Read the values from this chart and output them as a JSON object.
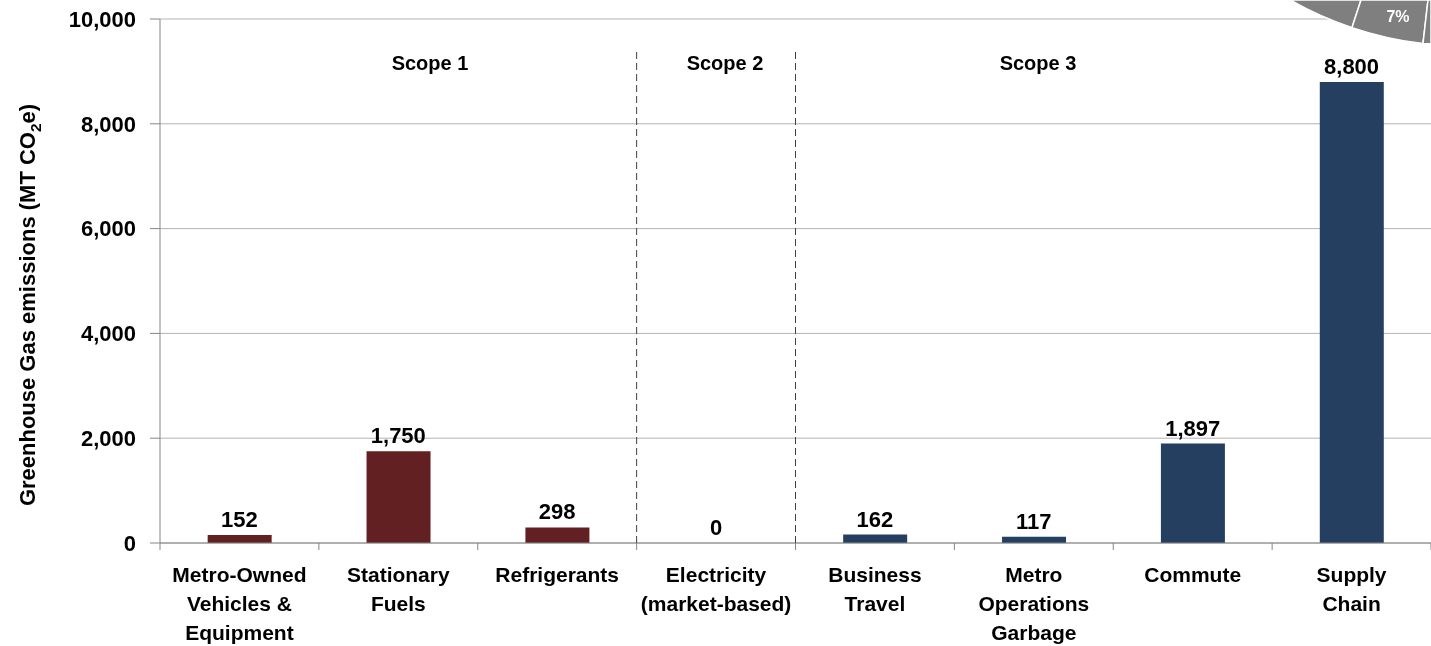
{
  "chart_data": {
    "type": "bar",
    "ylabel": "Greenhouse Gas emissions (MT CO$_{2}$e)",
    "categories": [
      "Metro-Owned Vehicles & Equipment",
      "Stationary Fuels",
      "Refrigerants",
      "Electricity (market-based)",
      "Business Travel",
      "Metro Operations Garbage",
      "Commute",
      "Supply Chain"
    ],
    "values": [
      152,
      1750,
      298,
      0,
      162,
      117,
      1897,
      8800
    ],
    "value_labels": [
      "152",
      "1,750",
      "298",
      "0",
      "162",
      "117",
      "1,897",
      "8,800"
    ],
    "colors": [
      "#632023",
      "#632023",
      "#632023",
      "#243f60",
      "#243f60",
      "#243f60",
      "#243f60",
      "#243f60"
    ],
    "ylim": [
      0,
      10000
    ],
    "yticks": [
      0,
      {
        "value": 2000,
        "label": "2,000"
      },
      {
        "value": 4000,
        "label": "4,000"
      },
      {
        "value": 6000,
        "label": "6,000"
      },
      {
        "value": 8000,
        "label": "8,000"
      },
      {
        "value": 10000,
        "label": "10,000"
      }
    ],
    "grid": "y",
    "legend": false,
    "annotations": [
      "Scope 1",
      "Scope 2",
      "Scope 3",
      "7%"
    ]
  }
}
